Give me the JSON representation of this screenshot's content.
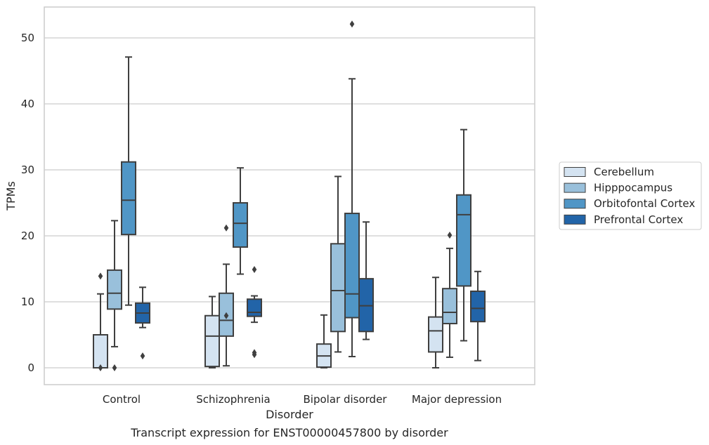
{
  "chart_data": {
    "type": "box",
    "title": "",
    "caption": "Transcript expression for ENST00000457800 by disorder",
    "xlabel": "Disorder",
    "ylabel": "TPMs",
    "ylim": [
      -2.5,
      55
    ],
    "yticks": [
      0,
      10,
      20,
      30,
      40,
      50
    ],
    "grid": "horizontal",
    "legend_position": "right",
    "categories": [
      "Control",
      "Schizophrenia",
      "Bipolar disorder",
      "Major depression"
    ],
    "series": [
      {
        "name": "Cerebellum",
        "color": "#d4e3f1",
        "boxes": [
          {
            "whislo": 0,
            "q1": 0,
            "med": 0,
            "q3": 5.0,
            "whishi": 11.2,
            "fliers": [
              13.9,
              0
            ]
          },
          {
            "whislo": 0,
            "q1": 0.2,
            "med": 4.8,
            "q3": 7.9,
            "whishi": 10.8,
            "fliers": []
          },
          {
            "whislo": 0,
            "q1": 0.1,
            "med": 1.8,
            "q3": 3.6,
            "whishi": 8.0,
            "fliers": []
          },
          {
            "whislo": 0,
            "q1": 2.4,
            "med": 5.6,
            "q3": 7.7,
            "whishi": 13.7,
            "fliers": []
          }
        ]
      },
      {
        "name": "Hipppocampus",
        "color": "#99c0db",
        "boxes": [
          {
            "whislo": 3.2,
            "q1": 8.9,
            "med": 11.3,
            "q3": 14.8,
            "whishi": 22.3,
            "fliers": [
              0
            ]
          },
          {
            "whislo": 0.3,
            "q1": 4.8,
            "med": 7.2,
            "q3": 11.3,
            "whishi": 15.7,
            "fliers": [
              21.2,
              7.9
            ]
          },
          {
            "whislo": 2.4,
            "q1": 5.5,
            "med": 11.7,
            "q3": 18.8,
            "whishi": 29.0,
            "fliers": []
          },
          {
            "whislo": 1.6,
            "q1": 6.7,
            "med": 8.4,
            "q3": 12.0,
            "whishi": 18.1,
            "fliers": [
              20.1
            ]
          }
        ]
      },
      {
        "name": "Orbitofontal Cortex",
        "color": "#5096c6",
        "boxes": [
          {
            "whislo": 9.5,
            "q1": 20.2,
            "med": 25.4,
            "q3": 31.2,
            "whishi": 47.1,
            "fliers": []
          },
          {
            "whislo": 14.2,
            "q1": 18.3,
            "med": 21.9,
            "q3": 25.0,
            "whishi": 30.3,
            "fliers": []
          },
          {
            "whislo": 1.7,
            "q1": 7.6,
            "med": 11.2,
            "q3": 23.4,
            "whishi": 43.8,
            "fliers": [
              52.1
            ]
          },
          {
            "whislo": 4.1,
            "q1": 12.4,
            "med": 23.2,
            "q3": 26.2,
            "whishi": 36.1,
            "fliers": []
          }
        ]
      },
      {
        "name": "Prefrontal Cortex",
        "color": "#2264a8",
        "boxes": [
          {
            "whislo": 6.1,
            "q1": 6.8,
            "med": 8.3,
            "q3": 9.8,
            "whishi": 12.2,
            "fliers": [
              1.8
            ]
          },
          {
            "whislo": 6.9,
            "q1": 7.8,
            "med": 8.4,
            "q3": 10.4,
            "whishi": 10.9,
            "fliers": [
              14.9,
              2.3,
              2.0
            ]
          },
          {
            "whislo": 4.3,
            "q1": 5.5,
            "med": 9.4,
            "q3": 13.5,
            "whishi": 22.1,
            "fliers": []
          },
          {
            "whislo": 1.1,
            "q1": 7.0,
            "med": 9.0,
            "q3": 11.6,
            "whishi": 14.6,
            "fliers": []
          }
        ]
      }
    ]
  }
}
